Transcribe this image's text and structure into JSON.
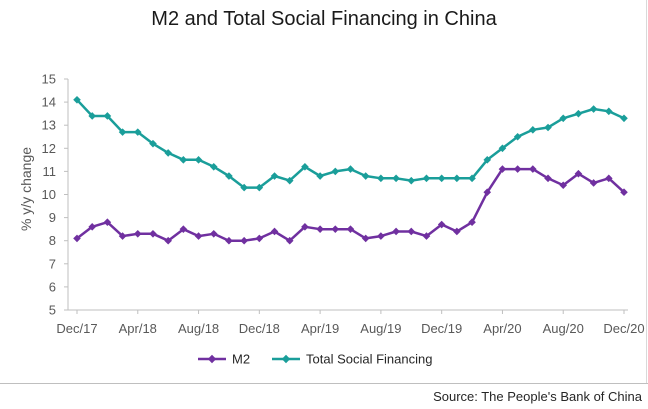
{
  "chart_data": {
    "type": "line",
    "title": "M2 and Total Social Financing in China",
    "ylabel": "% y/y change",
    "xlabel": "",
    "ylim": [
      5,
      15
    ],
    "yticks": [
      5,
      6,
      7,
      8,
      9,
      10,
      11,
      12,
      13,
      14,
      15
    ],
    "x": [
      "Dec/17",
      "Jan/18",
      "Feb/18",
      "Mar/18",
      "Apr/18",
      "May/18",
      "Jun/18",
      "Jul/18",
      "Aug/18",
      "Sep/18",
      "Oct/18",
      "Nov/18",
      "Dec/18",
      "Jan/19",
      "Feb/19",
      "Mar/19",
      "Apr/19",
      "May/19",
      "Jun/19",
      "Jul/19",
      "Aug/19",
      "Sep/19",
      "Oct/19",
      "Nov/19",
      "Dec/19",
      "Jan/20",
      "Feb/20",
      "Mar/20",
      "Apr/20",
      "May/20",
      "Jun/20",
      "Jul/20",
      "Aug/20",
      "Sep/20",
      "Oct/20",
      "Nov/20",
      "Dec/20"
    ],
    "xtick_labels": [
      "Dec/17",
      "Apr/18",
      "Aug/18",
      "Dec/18",
      "Apr/19",
      "Aug/19",
      "Dec/19",
      "Apr/20",
      "Aug/20",
      "Dec/20"
    ],
    "grid": false,
    "legend_position": "bottom",
    "series": [
      {
        "name": "M2",
        "color": "#7030a0",
        "marker": "diamond",
        "values": [
          8.1,
          8.6,
          8.8,
          8.2,
          8.3,
          8.3,
          8.0,
          8.5,
          8.2,
          8.3,
          8.0,
          8.0,
          8.1,
          8.4,
          8.0,
          8.6,
          8.5,
          8.5,
          8.5,
          8.1,
          8.2,
          8.4,
          8.4,
          8.2,
          8.7,
          8.4,
          8.8,
          10.1,
          11.1,
          11.1,
          11.1,
          10.7,
          10.4,
          10.9,
          10.5,
          10.7,
          10.1
        ]
      },
      {
        "name": "Total Social Financing",
        "color": "#1a9e9a",
        "marker": "diamond",
        "values": [
          14.1,
          13.4,
          13.4,
          12.7,
          12.7,
          12.2,
          11.8,
          11.5,
          11.5,
          11.2,
          10.8,
          10.3,
          10.3,
          10.8,
          10.6,
          11.2,
          10.8,
          11.0,
          11.1,
          10.8,
          10.7,
          10.7,
          10.6,
          10.7,
          10.7,
          10.7,
          10.7,
          11.5,
          12.0,
          12.5,
          12.8,
          12.9,
          13.3,
          13.5,
          13.7,
          13.6,
          13.3
        ]
      }
    ]
  },
  "source": "Source: The People's Bank of China"
}
